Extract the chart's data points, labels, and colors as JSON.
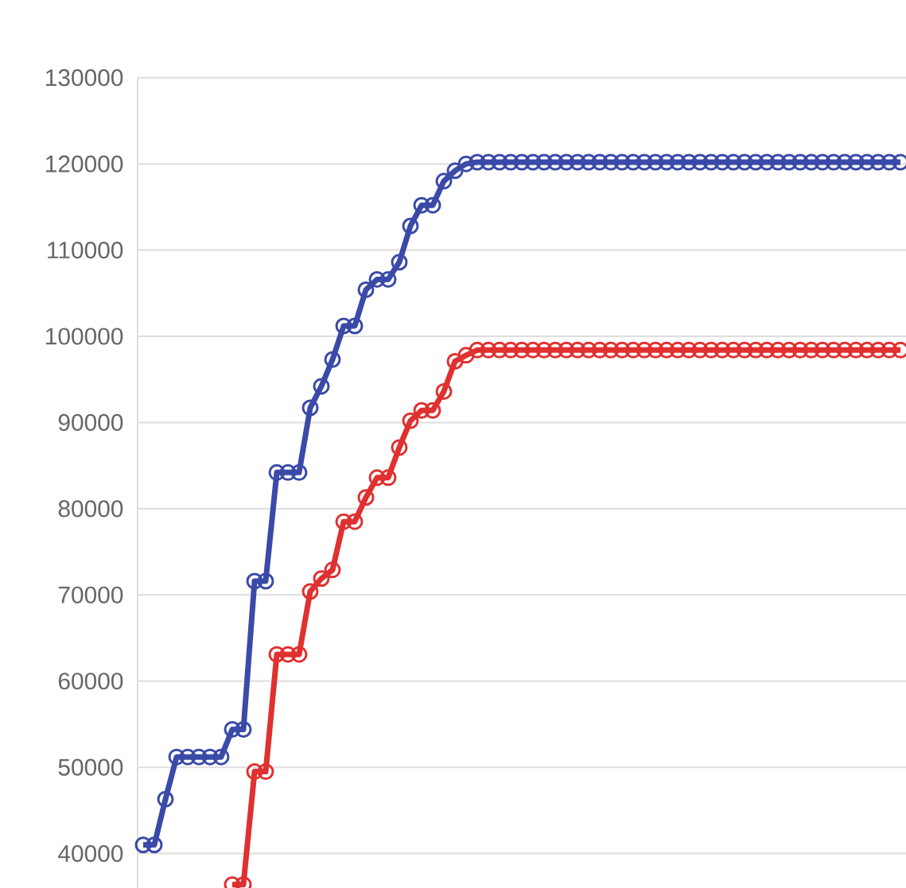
{
  "chart_data": {
    "type": "line",
    "categories": [
      null,
      null,
      null,
      null,
      null,
      null,
      null,
      null,
      null,
      null,
      null,
      null,
      null,
      null,
      null,
      null,
      null,
      null,
      null,
      null,
      null,
      null,
      null,
      null,
      null,
      null,
      null,
      null,
      null,
      null,
      null,
      null,
      null,
      null,
      null,
      null,
      null,
      null,
      null,
      null,
      null,
      null,
      null,
      null,
      null,
      null,
      null,
      null,
      null,
      null,
      null,
      null,
      null,
      null,
      null,
      null,
      null,
      null,
      null,
      null,
      null,
      null,
      null,
      null,
      null,
      null,
      null,
      null,
      null
    ],
    "series": [
      {
        "color": "#3a4aa8",
        "values": [
          41000,
          41000,
          46300,
          51200,
          51200,
          51200,
          51200,
          51200,
          54400,
          54400,
          71600,
          71600,
          84200,
          84200,
          84200,
          91700,
          94200,
          97300,
          101200,
          101200,
          105400,
          106600,
          106600,
          108600,
          112800,
          115200,
          115200,
          118000,
          119200,
          120000,
          120200,
          120200,
          120200,
          120200,
          120200,
          120200,
          120200,
          120200,
          120200,
          120200,
          120200,
          120200,
          120200,
          120200,
          120200,
          120200,
          120200,
          120200,
          120200,
          120200,
          120200,
          120200,
          120200,
          120200,
          120200,
          120200,
          120200,
          120200,
          120200,
          120200,
          120200,
          120200,
          120200,
          120200,
          120200,
          120200,
          120200,
          120200,
          120200
        ]
      },
      {
        "color": "#e03030",
        "values": [
          null,
          null,
          null,
          null,
          null,
          null,
          null,
          null,
          36400,
          36400,
          49500,
          49500,
          63100,
          63100,
          63100,
          70400,
          71900,
          72900,
          78500,
          78500,
          81300,
          83600,
          83600,
          87100,
          90200,
          91400,
          91400,
          93600,
          97100,
          97800,
          98400,
          98400,
          98400,
          98400,
          98400,
          98400,
          98400,
          98400,
          98400,
          98400,
          98400,
          98400,
          98400,
          98400,
          98400,
          98400,
          98400,
          98400,
          98400,
          98400,
          98400,
          98400,
          98400,
          98400,
          98400,
          98400,
          98400,
          98400,
          98400,
          98400,
          98400,
          98400,
          98400,
          98400,
          98400,
          98400,
          98400,
          98400,
          98400
        ]
      }
    ],
    "ylim": [
      36000,
      130000
    ],
    "yticks": [
      40000,
      50000,
      60000,
      70000,
      80000,
      90000,
      100000,
      110000,
      120000,
      130000
    ],
    "grid": true,
    "marker": "circle",
    "line_style": "solid",
    "tick_labels": "y"
  }
}
